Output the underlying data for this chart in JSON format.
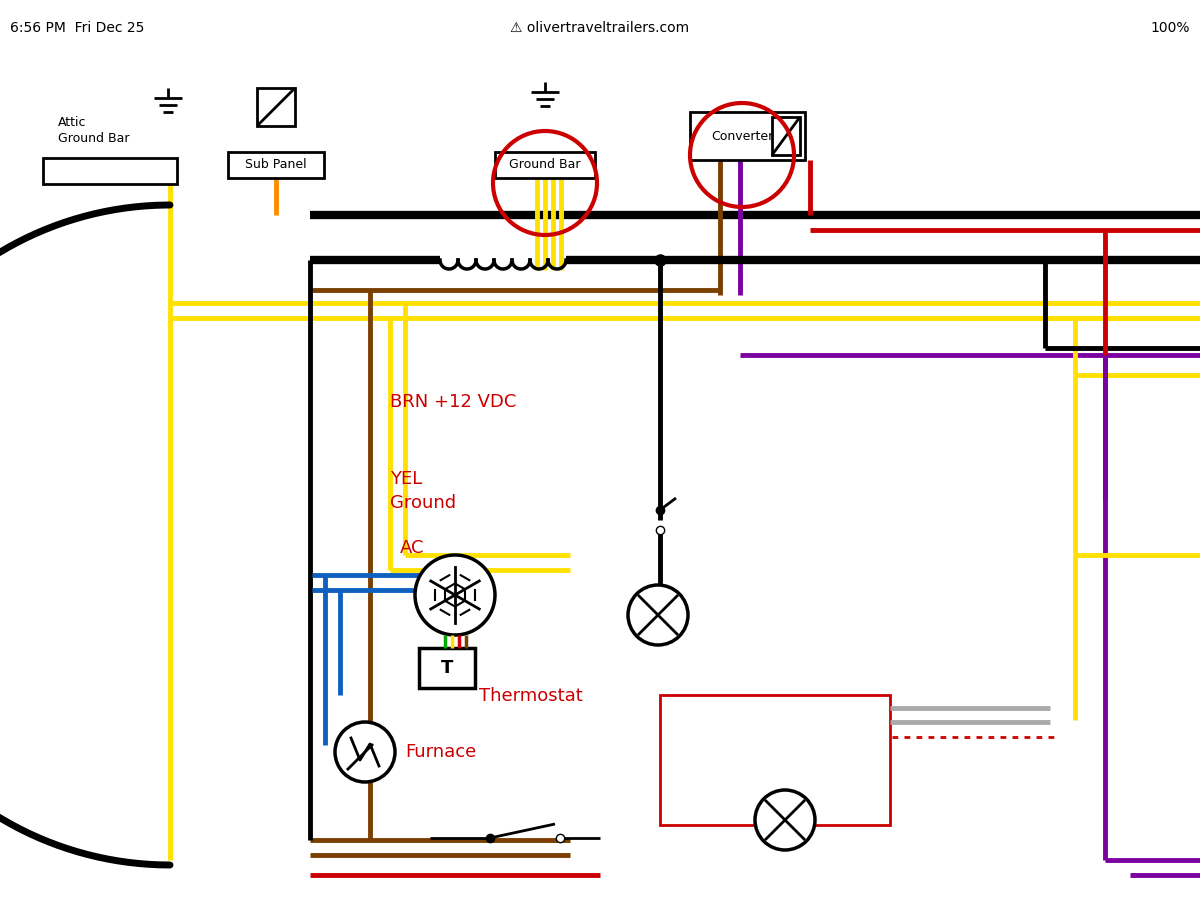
{
  "bg_color": "#ffffff",
  "header_text": "olivertraveltrailers.com",
  "status_bar": "6:56 PM  Fri Dec 25",
  "labels": {
    "attic_ground_bar": "Attic\nGround Bar",
    "sub_panel": "Sub Panel",
    "ground_bar": "Ground Bar",
    "converter": "Converter",
    "brn_label": "BRN +12 VDC",
    "yel_label": "YEL\nGround",
    "ac_label": "AC",
    "thermostat_label": "Thermostat",
    "furnace_label": "Furnace"
  },
  "black_color": "#000000",
  "yellow_color": "#FFE000",
  "brown_color": "#7B3F00",
  "orange_color": "#FF8C00",
  "red_color": "#CC0000",
  "purple_color": "#7B00A0",
  "blue_color": "#1060C0",
  "gray_color": "#AAAAAA",
  "green_color": "#00AA00",
  "white_color": "#ffffff"
}
